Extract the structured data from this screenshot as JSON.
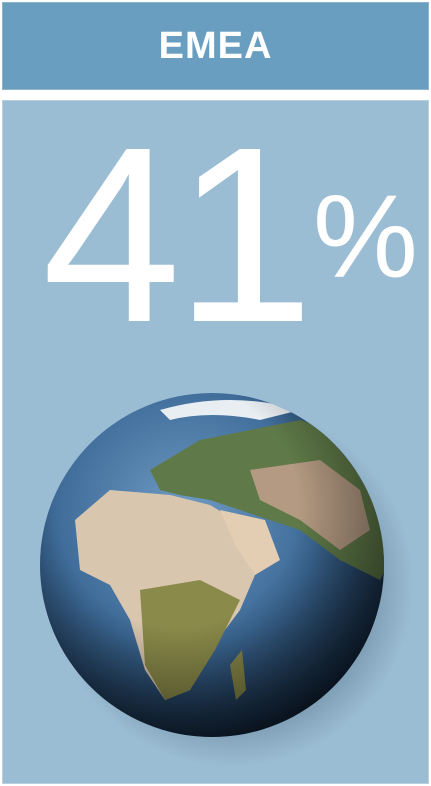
{
  "header": {
    "title": "EMEA"
  },
  "stat": {
    "value": "41",
    "unit": "%"
  }
}
